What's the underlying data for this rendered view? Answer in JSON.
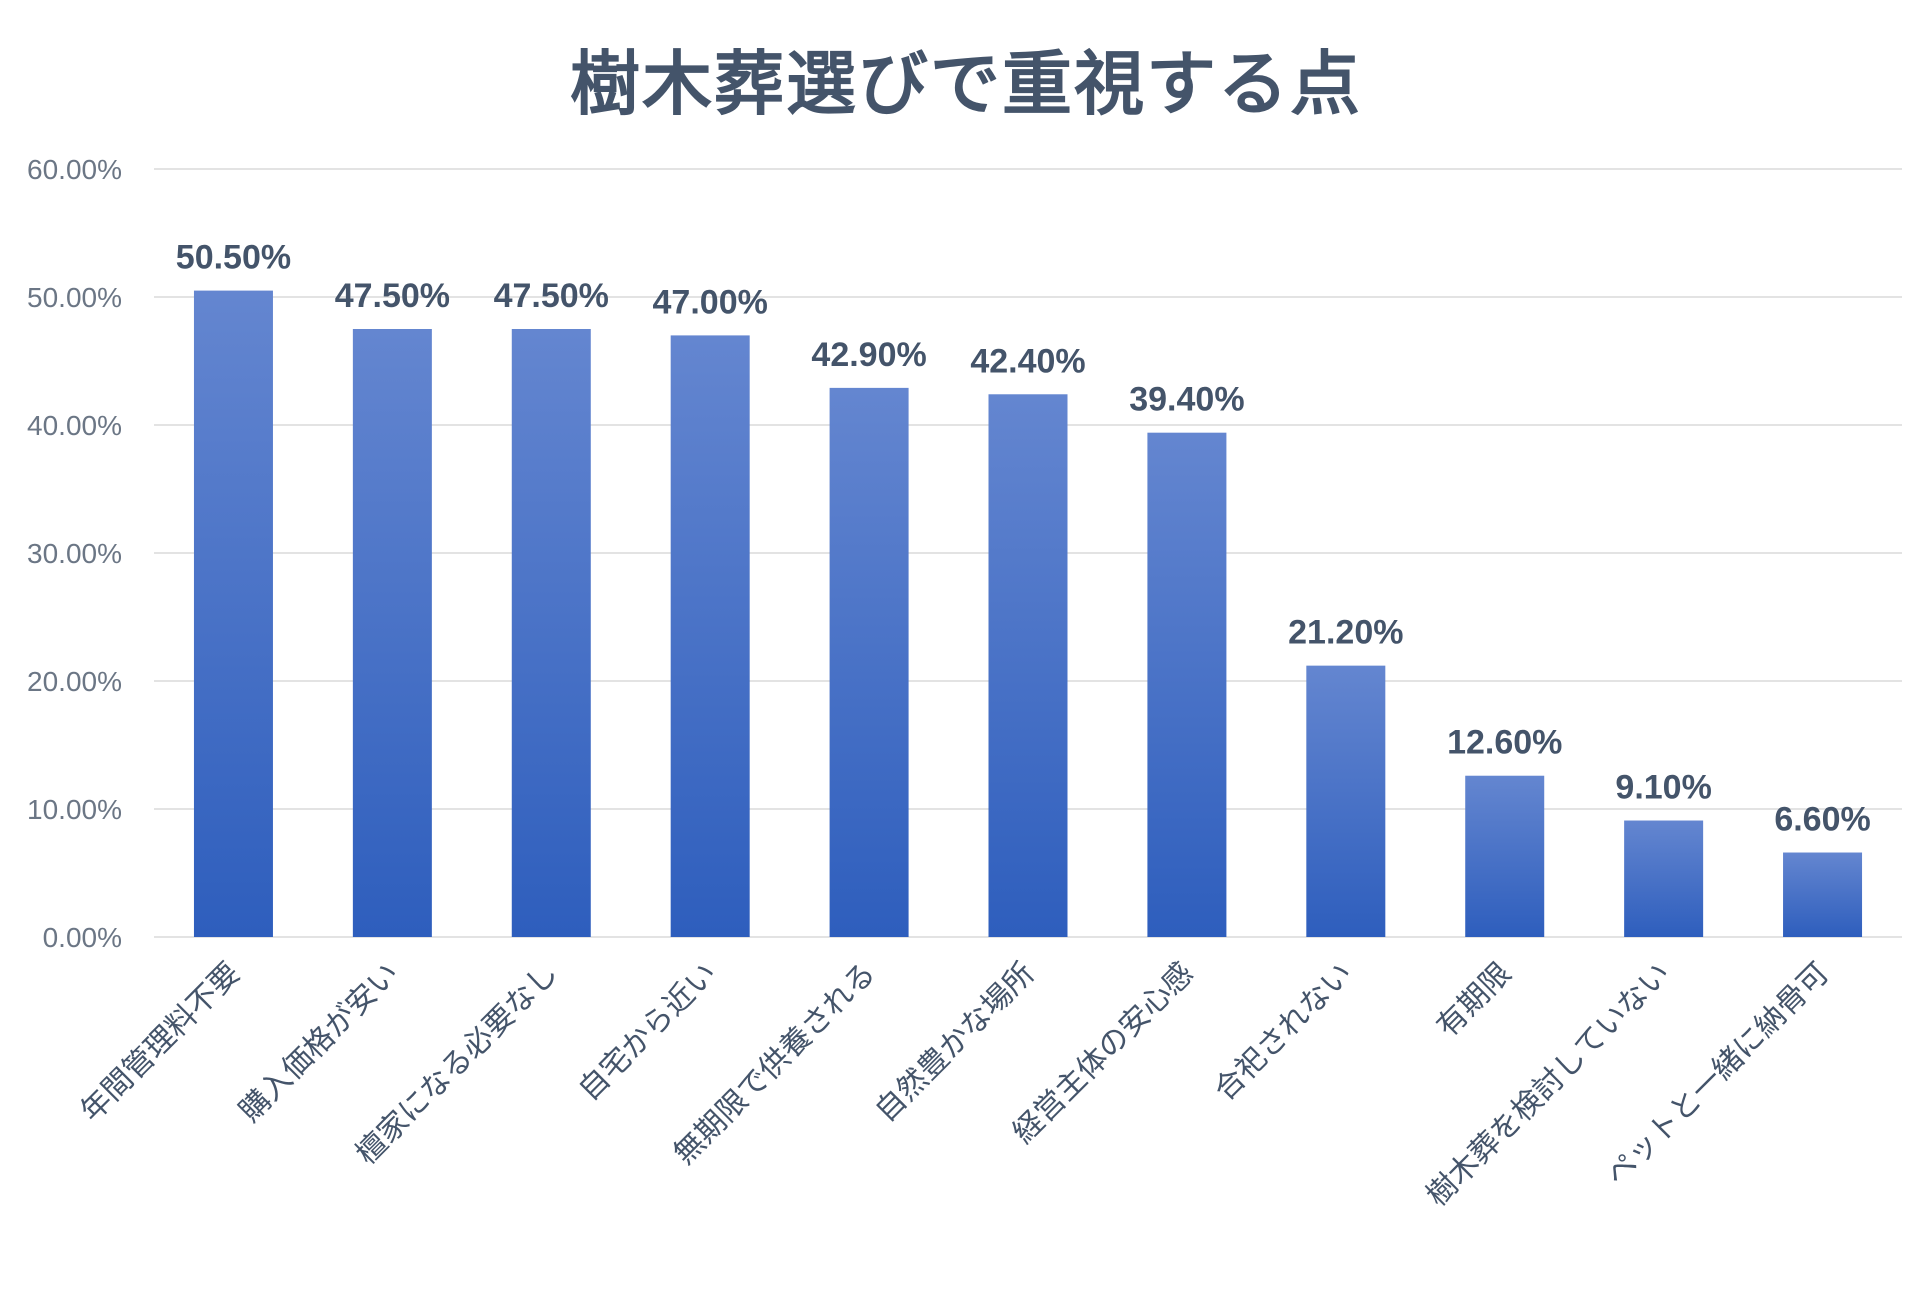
{
  "chart_data": {
    "type": "bar",
    "title": "樹木葬選びで重視する点",
    "xlabel": "",
    "ylabel": "",
    "categories": [
      "年間管理料不要",
      "購入価格が安い",
      "檀家になる必要なし",
      "自宅から近い",
      "無期限で供養される",
      "自然豊かな場所",
      "経営主体の安心感",
      "合祀されない",
      "有期限",
      "樹木葬を検討していない",
      "ペットと一緒に納骨可"
    ],
    "values": [
      50.5,
      47.5,
      47.5,
      47.0,
      42.9,
      42.4,
      39.4,
      21.2,
      12.6,
      9.1,
      6.6
    ],
    "data_labels": [
      "50.50%",
      "47.50%",
      "47.50%",
      "47.00%",
      "42.90%",
      "42.40%",
      "39.40%",
      "21.20%",
      "12.60%",
      "9.10%",
      "6.60%"
    ],
    "yticks": [
      "0.00%",
      "10.00%",
      "20.00%",
      "30.00%",
      "40.00%",
      "50.00%",
      "60.00%"
    ],
    "ylim": [
      0,
      60
    ],
    "grid": true,
    "legend": "none",
    "colors": {
      "bar_top": "#6486d0",
      "bar_bottom": "#2e5ebd",
      "title": "#44546a",
      "label": "#44546a",
      "tick": "#6b7685",
      "grid": "#e3e3e3"
    }
  }
}
